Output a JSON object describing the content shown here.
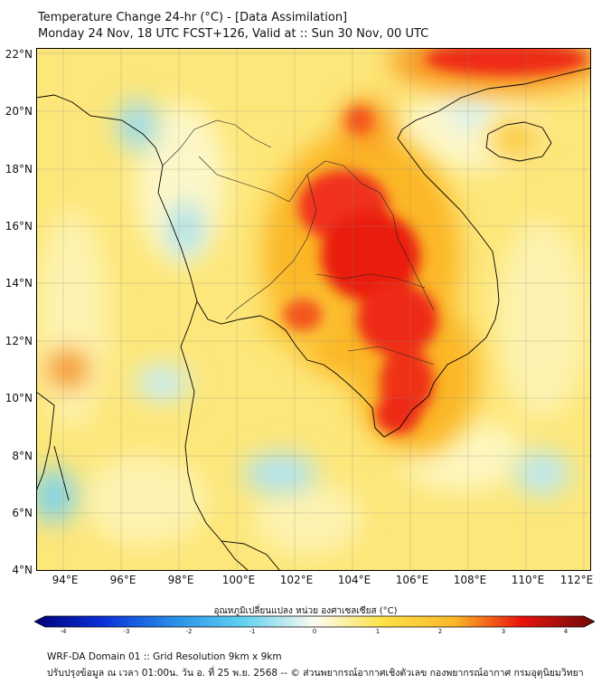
{
  "header": {
    "title_line1": "Temperature Change 24-hr (°C) - [Data Assimilation]",
    "title_line2": "Monday 24 Nov, 18 UTC FCST+126, Valid at :: Sun 30 Nov, 00 UTC"
  },
  "map": {
    "lat_range": [
      4,
      22
    ],
    "lon_range": [
      93,
      112.3
    ],
    "lat_labels": [
      "22°N",
      "20°N",
      "18°N",
      "16°N",
      "14°N",
      "12°N",
      "10°N",
      "8°N",
      "6°N",
      "4°N"
    ],
    "lon_labels": [
      "94°E",
      "96°E",
      "98°E",
      "100°E",
      "102°E",
      "104°E",
      "106°E",
      "108°E",
      "110°E",
      "112°E"
    ],
    "field_colors": {
      "strong_warm": "#e8120c",
      "warm": "#f46a1c",
      "mild_warm": "#fbb728",
      "slight_warm": "#fde24a",
      "near_zero": "#fdf7c0",
      "slight_cool": "#bfeaf4",
      "cool": "#7fd3ec"
    }
  },
  "colorbar": {
    "title": "อุณหภูมิเปลี่ยนแปลง หน่วย องศาเซลเซียส (°C)",
    "min": -4,
    "max": 4,
    "ticks": [
      "-4",
      "-3",
      "-2",
      "-1",
      "0",
      "1",
      "2",
      "3",
      "4"
    ]
  },
  "footer": {
    "line1": "WRF-DA Domain 01 :: Grid Resolution 9km x 9km",
    "line2": "ปรับปรุงข้อมูล ณ เวลา 01:00น. วัน อ. ที่ 25 พ.ย. 2568 -- © ส่วนพยากรณ์อากาศเชิงตัวเลข กองพยากรณ์อากาศ กรมอุตุนิยมวิทยา"
  }
}
